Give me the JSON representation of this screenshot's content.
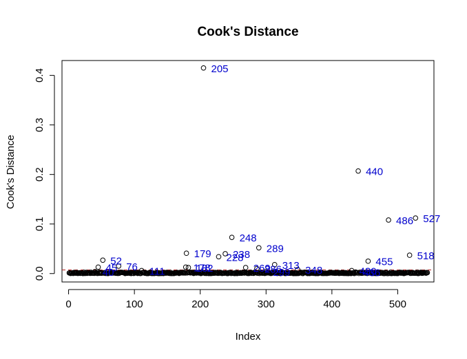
{
  "chart_data": {
    "type": "scatter",
    "title": "Cook's Distance",
    "xlabel": "Index",
    "ylabel": "Cook's Distance",
    "xlim": [
      -10,
      555
    ],
    "ylim": [
      -0.017,
      0.43
    ],
    "xticks": [
      0,
      100,
      200,
      300,
      400,
      500
    ],
    "yticks": [
      0.0,
      0.1,
      0.2,
      0.3,
      0.4
    ],
    "xtick_labels": [
      "0",
      "100",
      "200",
      "300",
      "400",
      "500"
    ],
    "ytick_labels": [
      "0.0",
      "0.1",
      "0.2",
      "0.3",
      "0.4"
    ],
    "n_points": 545,
    "threshold": 0.0073,
    "threshold_color": "#b22222",
    "point_color": "#000000",
    "label_color": "#0000cd",
    "grid": false,
    "highlighted_points": [
      {
        "index": 205,
        "cooks_distance": 0.415,
        "label": "205"
      },
      {
        "index": 440,
        "cooks_distance": 0.207,
        "label": "440"
      },
      {
        "index": 527,
        "cooks_distance": 0.112,
        "label": "527"
      },
      {
        "index": 486,
        "cooks_distance": 0.108,
        "label": "486"
      },
      {
        "index": 248,
        "cooks_distance": 0.073,
        "label": "248"
      },
      {
        "index": 289,
        "cooks_distance": 0.052,
        "label": "289"
      },
      {
        "index": 179,
        "cooks_distance": 0.041,
        "label": "179"
      },
      {
        "index": 238,
        "cooks_distance": 0.04,
        "label": "238"
      },
      {
        "index": 518,
        "cooks_distance": 0.037,
        "label": "518"
      },
      {
        "index": 228,
        "cooks_distance": 0.034,
        "label": "228"
      },
      {
        "index": 52,
        "cooks_distance": 0.027,
        "label": "52"
      },
      {
        "index": 455,
        "cooks_distance": 0.025,
        "label": "455"
      },
      {
        "index": 313,
        "cooks_distance": 0.018,
        "label": "313"
      },
      {
        "index": 76,
        "cooks_distance": 0.015,
        "label": "76"
      },
      {
        "index": 45,
        "cooks_distance": 0.013,
        "label": "45"
      },
      {
        "index": 178,
        "cooks_distance": 0.013,
        "label": "178"
      },
      {
        "index": 182,
        "cooks_distance": 0.012,
        "label": "182"
      },
      {
        "index": 269,
        "cooks_distance": 0.012,
        "label": "269"
      },
      {
        "index": 286,
        "cooks_distance": 0.01,
        "label": "286"
      },
      {
        "index": 348,
        "cooks_distance": 0.008,
        "label": "348"
      },
      {
        "index": 111,
        "cooks_distance": 0.006,
        "label": "111"
      },
      {
        "index": 430,
        "cooks_distance": 0.006,
        "label": "430"
      },
      {
        "index": 40,
        "cooks_distance": 0.004,
        "label": "40"
      },
      {
        "index": 299,
        "cooks_distance": 0.004,
        "label": "299"
      },
      {
        "index": 436,
        "cooks_distance": 0.003,
        "label": "436"
      }
    ]
  }
}
